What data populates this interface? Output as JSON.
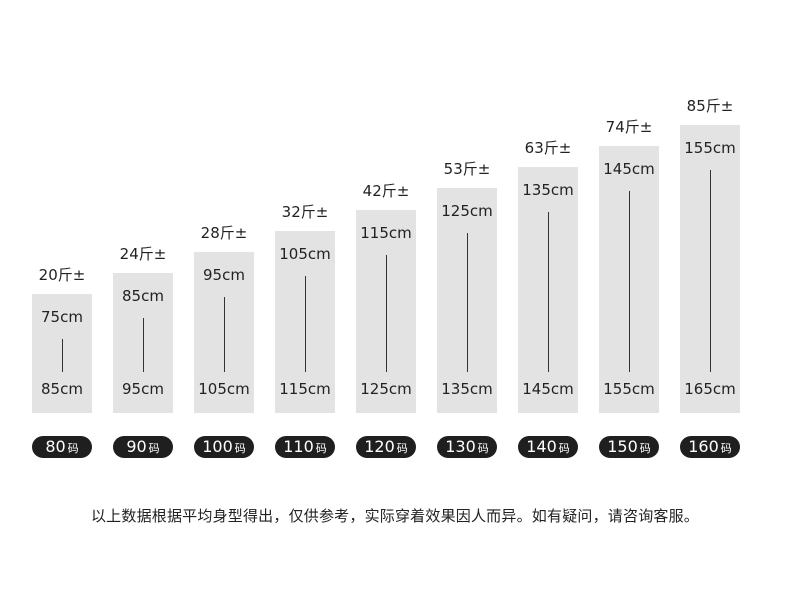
{
  "chart_data": {
    "type": "bar",
    "categories": [
      "80码",
      "90码",
      "100码",
      "110码",
      "120码",
      "130码",
      "140码",
      "150码",
      "160码"
    ],
    "sizes": [
      {
        "num": "80",
        "unit": "码",
        "weight": "20斤±",
        "height_min": "75cm",
        "height_max": "85cm"
      },
      {
        "num": "90",
        "unit": "码",
        "weight": "24斤±",
        "height_min": "85cm",
        "height_max": "95cm"
      },
      {
        "num": "100",
        "unit": "码",
        "weight": "28斤±",
        "height_min": "95cm",
        "height_max": "105cm"
      },
      {
        "num": "110",
        "unit": "码",
        "weight": "32斤±",
        "height_min": "105cm",
        "height_max": "115cm"
      },
      {
        "num": "120",
        "unit": "码",
        "weight": "42斤±",
        "height_min": "115cm",
        "height_max": "125cm"
      },
      {
        "num": "130",
        "unit": "码",
        "weight": "53斤±",
        "height_min": "125cm",
        "height_max": "135cm"
      },
      {
        "num": "140",
        "unit": "码",
        "weight": "63斤±",
        "height_min": "135cm",
        "height_max": "145cm"
      },
      {
        "num": "150",
        "unit": "码",
        "weight": "74斤±",
        "height_min": "145cm",
        "height_max": "155cm"
      },
      {
        "num": "160",
        "unit": "码",
        "weight": "85斤±",
        "height_min": "155cm",
        "height_max": "165cm"
      }
    ],
    "values": [
      85,
      95,
      105,
      115,
      125,
      135,
      145,
      155,
      165
    ],
    "grid": false
  },
  "colors": {
    "bar": "#e3e3e3",
    "pill": "#1f1f1f",
    "pill_text": "#ffffff",
    "text": "#222222"
  },
  "footnote": "以上数据根据平均身型得出，仅供参考，实际穿着效果因人而异。如有疑问，请咨询客服。"
}
